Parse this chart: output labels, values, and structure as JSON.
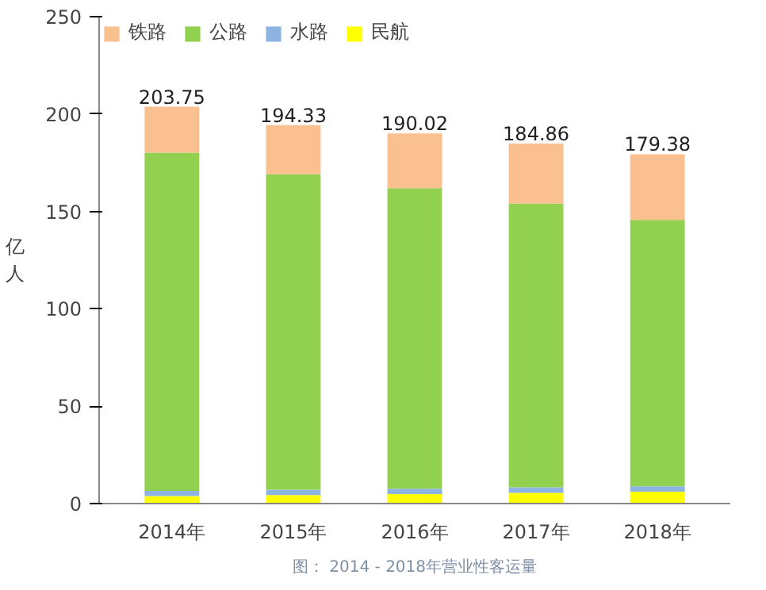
{
  "chart_data": {
    "type": "bar",
    "stacked": true,
    "ylabel": "亿人",
    "categories": [
      "2014年",
      "2015年",
      "2016年",
      "2017年",
      "2018年"
    ],
    "series": [
      {
        "name": "民航",
        "color": "#ffff00",
        "values": [
          3.9,
          4.4,
          4.9,
          5.5,
          6.1
        ]
      },
      {
        "name": "水路",
        "color": "#8eb4e3",
        "values": [
          2.6,
          2.7,
          2.7,
          2.8,
          2.8
        ]
      },
      {
        "name": "公路",
        "color": "#92d050",
        "values": [
          173.65,
          161.93,
          154.32,
          145.76,
          136.78
        ]
      },
      {
        "name": "铁路",
        "color": "#fac090",
        "values": [
          23.6,
          25.3,
          28.1,
          30.8,
          33.7
        ]
      }
    ],
    "totals": [
      "203.75",
      "194.33",
      "190.02",
      "184.86",
      "179.38"
    ],
    "ylim": [
      0,
      250
    ],
    "yticks": [
      0,
      50,
      100,
      150,
      200,
      250
    ],
    "grid": false,
    "legend": "top left",
    "annotations": [
      "图： 2014 - 2018年营业性客运量"
    ]
  }
}
